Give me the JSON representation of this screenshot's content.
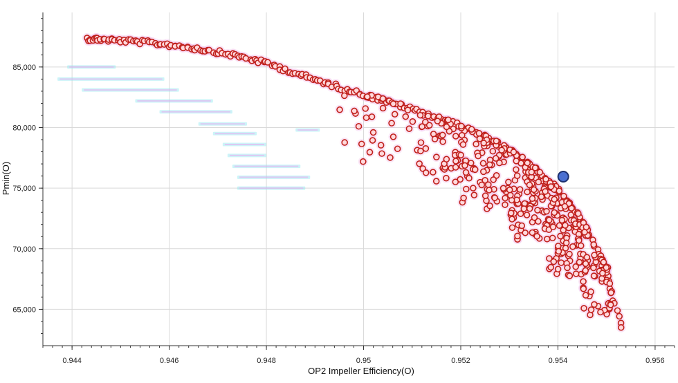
{
  "chart_data": {
    "type": "scatter",
    "title": "",
    "xlabel": "OP2 Impeller Efficiency(O)",
    "ylabel": "Pmin(O)",
    "xlim": [
      0.9434,
      0.9564
    ],
    "ylim": [
      62000,
      89500
    ],
    "x_ticks": [
      0.944,
      0.946,
      0.948,
      0.95,
      0.952,
      0.954,
      0.956
    ],
    "x_tick_labels": [
      "0.944",
      "0.946",
      "0.948",
      "0.95",
      "0.952",
      "0.954",
      "0.956"
    ],
    "y_ticks": [
      65000,
      70000,
      75000,
      80000,
      85000
    ],
    "y_tick_labels": [
      "65,000",
      "70,000",
      "75,000",
      "80,000",
      "85,000"
    ],
    "grid": true,
    "colors": {
      "point_edge": "#c0201c",
      "point_fill": "#ffd9dc",
      "halo": "#f2b6e8",
      "highlight_fill": "#4a6fd1",
      "highlight_edge": "#1c2f6e",
      "ghost": "#8fe6f0"
    },
    "series": [
      {
        "name": "",
        "frontier": {
          "x": [
            0.9443,
            0.9446,
            0.945,
            0.9455,
            0.946,
            0.9465,
            0.947,
            0.9475,
            0.948,
            0.9485,
            0.949,
            0.9495,
            0.95,
            0.9505,
            0.951,
            0.9515,
            0.952,
            0.9525,
            0.953,
            0.9535,
            0.954,
            0.9545,
            0.955,
            0.9553
          ],
          "y": [
            87500,
            87450,
            87350,
            87200,
            87000,
            86750,
            86400,
            86000,
            85500,
            84800,
            84100,
            83500,
            82900,
            82300,
            81700,
            81000,
            80300,
            79400,
            78300,
            76900,
            75000,
            72500,
            68500,
            63500
          ]
        },
        "cloud_bands": [
          {
            "x": [
              0.9495,
              0.951
            ],
            "y_range": [
              77000,
              83000
            ],
            "count": 30
          },
          {
            "x": [
              0.951,
              0.952
            ],
            "y_range": [
              75500,
              82300
            ],
            "count": 50
          },
          {
            "x": [
              0.952,
              0.953
            ],
            "y_range": [
              73000,
              80500
            ],
            "count": 85
          },
          {
            "x": [
              0.953,
              0.9538
            ],
            "y_range": [
              70500,
              78600
            ],
            "count": 105
          },
          {
            "x": [
              0.9538,
              0.9545
            ],
            "y_range": [
              67500,
              76200
            ],
            "count": 110
          },
          {
            "x": [
              0.9545,
              0.9551
            ],
            "y_range": [
              64500,
              73000
            ],
            "count": 70
          }
        ],
        "extra_points": [
          {
            "x": 0.9499,
            "y": 80100
          },
          {
            "x": 0.9502,
            "y": 79600
          },
          {
            "x": 0.9533,
            "y": 73300
          },
          {
            "x": 0.9527,
            "y": 74200
          }
        ]
      }
    ],
    "highlight_point": {
      "x": 0.95411,
      "y": 75950
    },
    "ghost_labels": {
      "x": [
        0.9439,
        0.9437,
        0.9442,
        0.9453,
        0.9458,
        0.9466,
        0.9469,
        0.9471,
        0.9472,
        0.9473,
        0.9474,
        0.9474,
        0.9486
      ],
      "y": [
        85000,
        84000,
        83100,
        82200,
        81300,
        80300,
        79500,
        78600,
        77700,
        76800,
        75900,
        75000,
        79800
      ],
      "widths": [
        0.001,
        0.0022,
        0.002,
        0.0016,
        0.0015,
        0.001,
        0.0009,
        0.0009,
        0.0008,
        0.0014,
        0.0015,
        0.0014,
        0.0005
      ]
    }
  }
}
